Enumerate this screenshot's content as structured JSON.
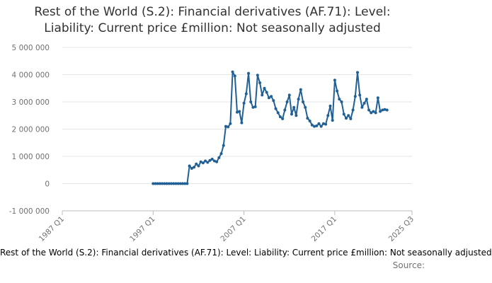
{
  "chart_data": {
    "type": "line",
    "title_line1": "Rest of the World (S.2): Financial derivatives (AF.71): Level:",
    "title_line2": "Liability: Current price £million: Not seasonally adjusted",
    "bottom_title": "Rest of the World (S.2): Financial derivatives (AF.71): Level: Liability: Current price £million: Not seasonally adjusted",
    "source_label": "Source:",
    "y_ticks": [
      {
        "value": 5000000,
        "label": "5 000 000"
      },
      {
        "value": 4000000,
        "label": "4 000 000"
      },
      {
        "value": 3000000,
        "label": "3 000 000"
      },
      {
        "value": 2000000,
        "label": "2 000 000"
      },
      {
        "value": 1000000,
        "label": "1 000 000"
      },
      {
        "value": 0,
        "label": "0"
      },
      {
        "value": -1000000,
        "label": "-1 000 000"
      }
    ],
    "ylim": [
      -1000000,
      5000000
    ],
    "x_ticks": [
      {
        "index": 0,
        "label": "1987 Q1"
      },
      {
        "index": 40,
        "label": "1997 Q1"
      },
      {
        "index": 80,
        "label": "2007 Q1"
      },
      {
        "index": 120,
        "label": "2017 Q1"
      },
      {
        "index": 154,
        "label": "2025 Q3"
      }
    ],
    "x_start": "1987 Q1",
    "x_end": "2025 Q3",
    "grid": true,
    "line_color": "#206095",
    "series": [
      {
        "start_index": 40,
        "values": [
          0,
          0,
          0,
          0,
          0,
          0,
          0,
          0,
          0,
          0,
          0,
          0,
          0,
          0,
          0,
          0,
          650000,
          560000,
          600000,
          720000,
          650000,
          800000,
          760000,
          830000,
          780000,
          850000,
          900000,
          830000,
          800000,
          950000,
          1100000,
          1400000,
          2100000,
          2080000,
          2200000,
          4100000,
          3950000,
          2620000,
          2650000,
          2230000,
          2950000,
          3300000,
          4050000,
          3000000,
          2800000,
          2820000,
          3980000,
          3700000,
          3250000,
          3500000,
          3350000,
          3150000,
          3200000,
          3050000,
          2750000,
          2600000,
          2450000,
          2380000,
          2700000,
          3000000,
          3250000,
          2550000,
          2800000,
          2500000,
          3100000,
          3450000,
          3000000,
          2800000,
          2400000,
          2300000,
          2150000,
          2100000,
          2120000,
          2200000,
          2100000,
          2200000,
          2180000,
          2500000,
          2850000,
          2320000,
          3800000,
          3400000,
          3100000,
          3000000,
          2550000,
          2400000,
          2500000,
          2380000,
          2700000,
          3200000,
          4080000,
          3250000,
          2800000,
          2950000,
          3100000,
          2700000,
          2600000,
          2650000,
          2600000,
          3150000,
          2650000,
          2700000,
          2720000,
          2700000
        ]
      }
    ]
  }
}
